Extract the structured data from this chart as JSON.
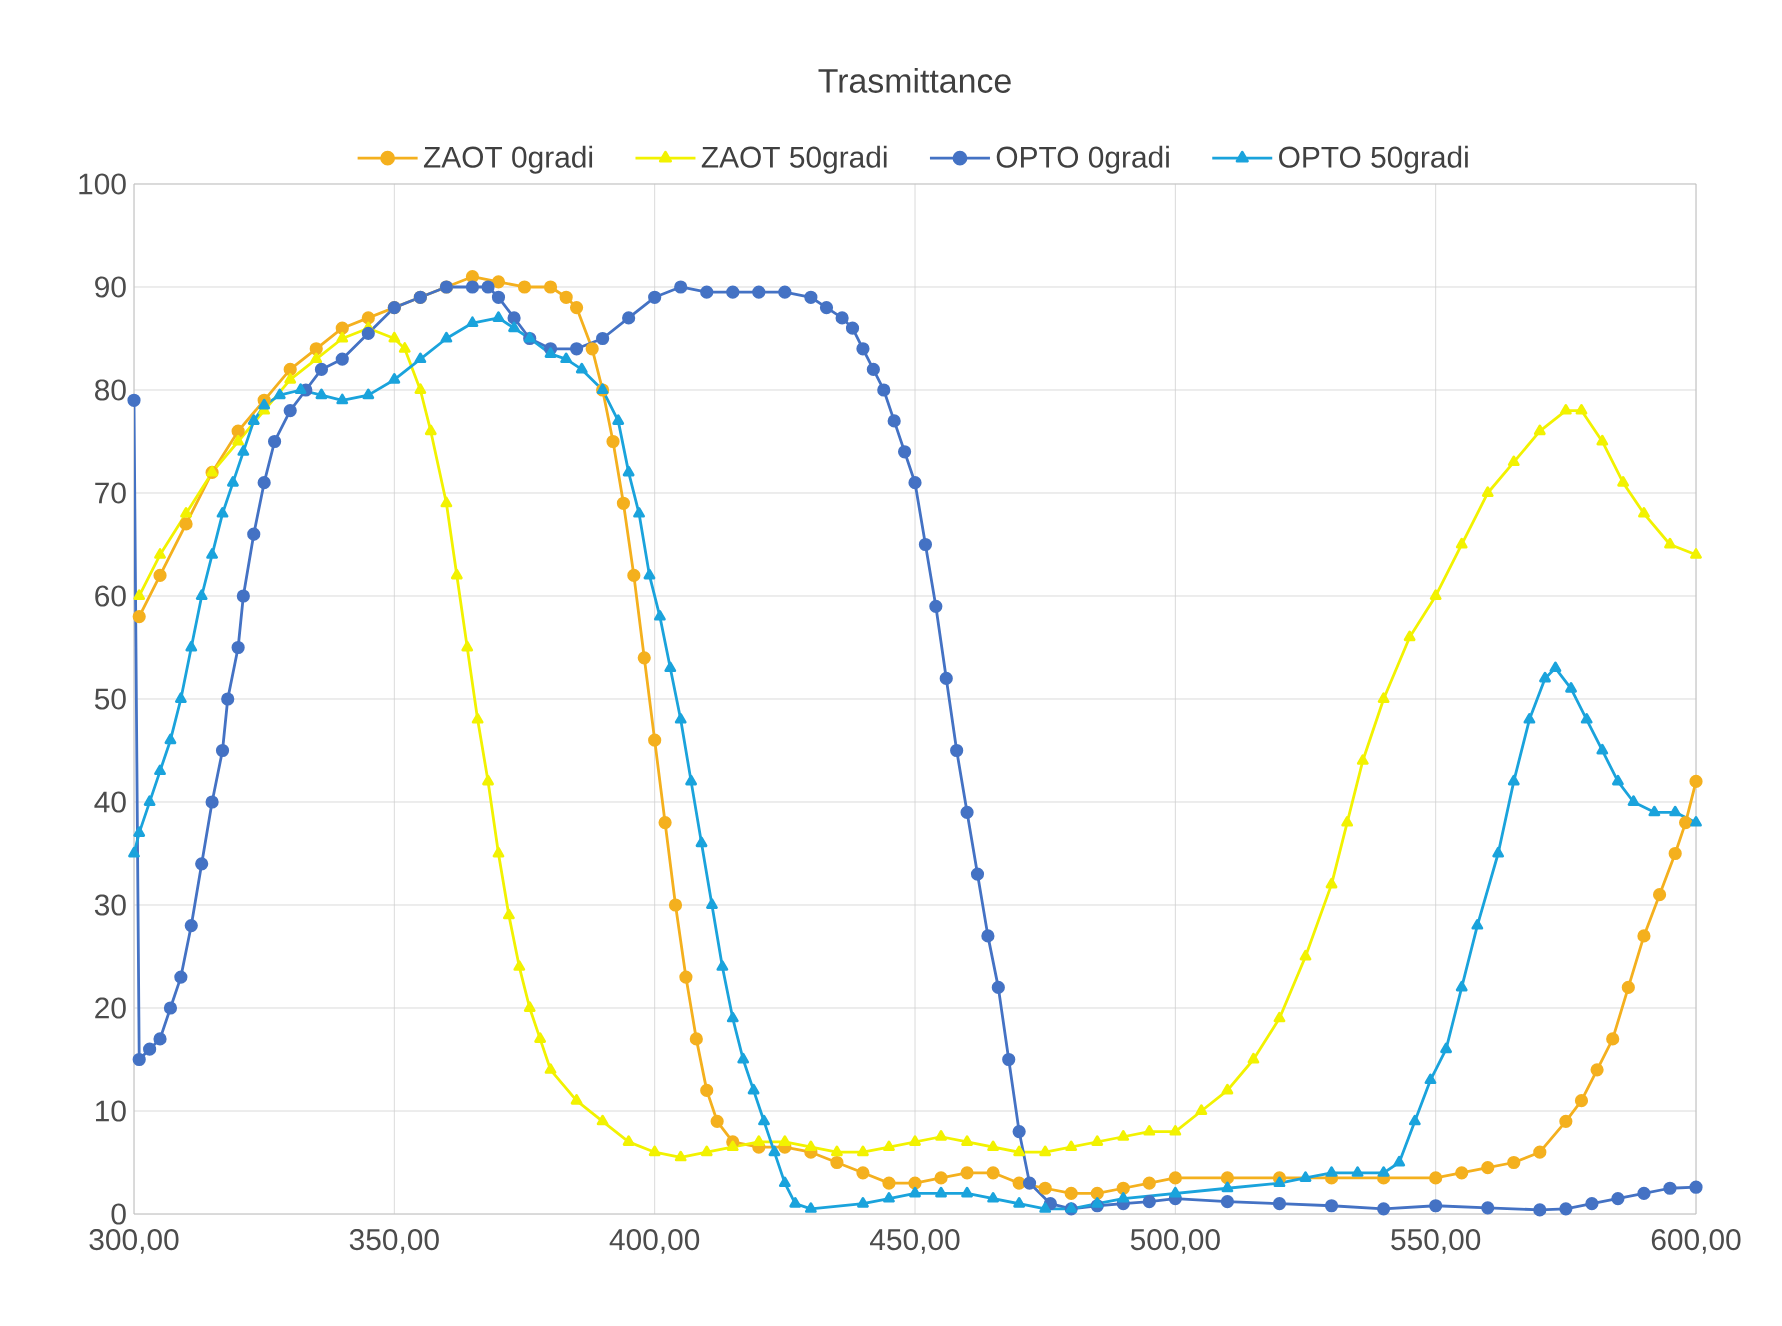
{
  "chart_data": {
    "type": "line",
    "title": "Trasmittance",
    "series": [
      {
        "name": "ZAOT 0gradi",
        "color": "#f4b01e",
        "marker": "circle",
        "x": [
          301,
          305,
          310,
          315,
          320,
          325,
          330,
          335,
          340,
          345,
          350,
          355,
          360,
          365,
          370,
          375,
          380,
          383,
          385,
          388,
          390,
          392,
          394,
          396,
          398,
          400,
          402,
          404,
          406,
          408,
          410,
          412,
          415,
          420,
          425,
          430,
          435,
          440,
          445,
          450,
          455,
          460,
          465,
          470,
          475,
          480,
          485,
          490,
          495,
          500,
          510,
          520,
          530,
          540,
          550,
          555,
          560,
          565,
          570,
          575,
          578,
          581,
          584,
          587,
          590,
          593,
          596,
          598,
          600
        ],
        "values": [
          58,
          62,
          67,
          72,
          76,
          79,
          82,
          84,
          86,
          87,
          88,
          89,
          90,
          91,
          90.5,
          90,
          90,
          89,
          88,
          84,
          80,
          75,
          69,
          62,
          54,
          46,
          38,
          30,
          23,
          17,
          12,
          9,
          7,
          6.5,
          6.5,
          6,
          5,
          4,
          3,
          3,
          3.5,
          4,
          4,
          3,
          2.5,
          2,
          2,
          2.5,
          3,
          3.5,
          3.5,
          3.5,
          3.5,
          3.5,
          3.5,
          4,
          4.5,
          5,
          6,
          9,
          11,
          14,
          17,
          22,
          27,
          31,
          35,
          38,
          42
        ]
      },
      {
        "name": "ZAOT 50gradi",
        "color": "#f2f200",
        "marker": "triangle",
        "x": [
          301,
          305,
          310,
          315,
          320,
          325,
          330,
          335,
          340,
          345,
          350,
          352,
          355,
          357,
          360,
          362,
          364,
          366,
          368,
          370,
          372,
          374,
          376,
          378,
          380,
          385,
          390,
          395,
          400,
          405,
          410,
          415,
          420,
          425,
          430,
          435,
          440,
          445,
          450,
          455,
          460,
          465,
          470,
          475,
          480,
          485,
          490,
          495,
          500,
          505,
          510,
          515,
          520,
          525,
          530,
          533,
          536,
          540,
          545,
          550,
          555,
          560,
          565,
          570,
          575,
          578,
          582,
          586,
          590,
          595,
          600
        ],
        "values": [
          60,
          64,
          68,
          72,
          75,
          78,
          81,
          83,
          85,
          86,
          85,
          84,
          80,
          76,
          69,
          62,
          55,
          48,
          42,
          35,
          29,
          24,
          20,
          17,
          14,
          11,
          9,
          7,
          6,
          5.5,
          6,
          6.5,
          7,
          7,
          6.5,
          6,
          6,
          6.5,
          7,
          7.5,
          7,
          6.5,
          6,
          6,
          6.5,
          7,
          7.5,
          8,
          8,
          10,
          12,
          15,
          19,
          25,
          32,
          38,
          44,
          50,
          56,
          60,
          65,
          70,
          73,
          76,
          78,
          78,
          75,
          71,
          68,
          65,
          64
        ]
      },
      {
        "name": "OPTO 0gradi",
        "color": "#4472c4",
        "marker": "circle",
        "x": [
          300,
          301,
          303,
          305,
          307,
          309,
          311,
          313,
          315,
          317,
          318,
          320,
          321,
          323,
          325,
          327,
          330,
          333,
          336,
          340,
          345,
          350,
          355,
          360,
          365,
          368,
          370,
          373,
          376,
          380,
          385,
          390,
          395,
          400,
          405,
          410,
          415,
          420,
          425,
          430,
          433,
          436,
          438,
          440,
          442,
          444,
          446,
          448,
          450,
          452,
          454,
          456,
          458,
          460,
          462,
          464,
          466,
          468,
          470,
          472,
          476,
          480,
          485,
          490,
          495,
          500,
          510,
          520,
          530,
          540,
          550,
          560,
          570,
          575,
          580,
          585,
          590,
          595,
          600
        ],
        "values": [
          79,
          15,
          16,
          17,
          20,
          23,
          28,
          34,
          40,
          45,
          50,
          55,
          60,
          66,
          71,
          75,
          78,
          80,
          82,
          83,
          85.5,
          88,
          89,
          90,
          90,
          90,
          89,
          87,
          85,
          84,
          84,
          85,
          87,
          89,
          90,
          89.5,
          89.5,
          89.5,
          89.5,
          89,
          88,
          87,
          86,
          84,
          82,
          80,
          77,
          74,
          71,
          65,
          59,
          52,
          45,
          39,
          33,
          27,
          22,
          15,
          8,
          3,
          1,
          0.5,
          0.8,
          1,
          1.2,
          1.5,
          1.2,
          1,
          0.8,
          0.5,
          0.8,
          0.6,
          0.4,
          0.5,
          1,
          1.5,
          2,
          2.5,
          2.6
        ]
      },
      {
        "name": "OPTO 50gradi",
        "color": "#1aa3dc",
        "marker": "triangle",
        "x": [
          300,
          301,
          303,
          305,
          307,
          309,
          311,
          313,
          315,
          317,
          319,
          321,
          323,
          325,
          328,
          332,
          336,
          340,
          345,
          350,
          355,
          360,
          365,
          370,
          373,
          376,
          380,
          383,
          386,
          390,
          393,
          395,
          397,
          399,
          401,
          403,
          405,
          407,
          409,
          411,
          413,
          415,
          417,
          419,
          421,
          423,
          425,
          427,
          430,
          440,
          445,
          450,
          455,
          460,
          465,
          470,
          475,
          480,
          485,
          490,
          500,
          510,
          520,
          525,
          530,
          535,
          540,
          543,
          546,
          549,
          552,
          555,
          558,
          562,
          565,
          568,
          571,
          573,
          576,
          579,
          582,
          585,
          588,
          592,
          596,
          600
        ],
        "values": [
          35,
          37,
          40,
          43,
          46,
          50,
          55,
          60,
          64,
          68,
          71,
          74,
          77,
          78.5,
          79.5,
          80,
          79.5,
          79,
          79.5,
          81,
          83,
          85,
          86.5,
          87,
          86,
          85,
          83.5,
          83,
          82,
          80,
          77,
          72,
          68,
          62,
          58,
          53,
          48,
          42,
          36,
          30,
          24,
          19,
          15,
          12,
          9,
          6,
          3,
          1,
          0.5,
          1,
          1.5,
          2,
          2,
          2,
          1.5,
          1,
          0.5,
          0.5,
          1,
          1.5,
          2,
          2.5,
          3,
          3.5,
          4,
          4,
          4,
          5,
          9,
          13,
          16,
          22,
          28,
          35,
          42,
          48,
          52,
          53,
          51,
          48,
          45,
          42,
          40,
          39,
          39,
          38
        ]
      }
    ],
    "xlim": [
      300,
      600
    ],
    "xticks": [
      {
        "value": 300,
        "label": "300,00"
      },
      {
        "value": 350,
        "label": "350,00"
      },
      {
        "value": 400,
        "label": "400,00"
      },
      {
        "value": 450,
        "label": "450,00"
      },
      {
        "value": 500,
        "label": "500,00"
      },
      {
        "value": 550,
        "label": "550,00"
      },
      {
        "value": 600,
        "label": "600,00"
      }
    ],
    "ylim": [
      0,
      100
    ],
    "yticks": [
      0,
      10,
      20,
      30,
      40,
      50,
      60,
      70,
      80,
      90,
      100
    ],
    "grid": true,
    "legend": "top",
    "line_style": "solid"
  }
}
